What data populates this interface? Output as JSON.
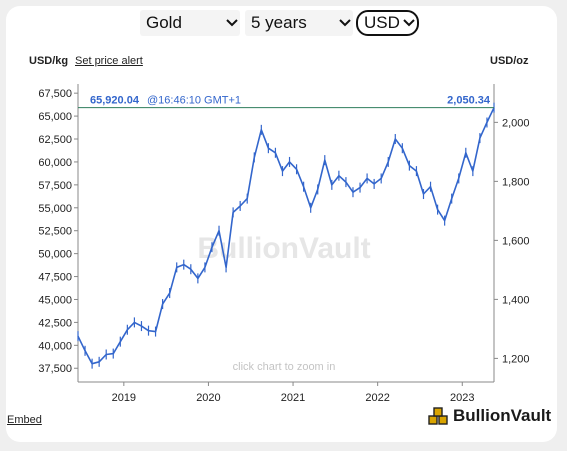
{
  "controls": {
    "metal": "Gold",
    "period": "5 years",
    "currency": "USD"
  },
  "labels": {
    "left_unit": "USD/kg",
    "set_alert": "Set price alert",
    "right_unit": "USD/oz",
    "current_left": "65,920.04",
    "current_time": "@16:46:10 GMT+1",
    "current_right": "2,050.34",
    "watermark": "BullionVault",
    "zoom_hint": "click chart to zoom in",
    "embed": "Embed",
    "brand": "BullionVault"
  },
  "colors": {
    "series": "#3366cc",
    "current_line": "#2e7d5b",
    "current_text": "#3366cc",
    "watermark": "#e6e6e6",
    "brand_icon": "#d9a400"
  },
  "chart_data": {
    "type": "line",
    "title": "",
    "x_axis": {
      "ticks": [
        "2019",
        "2020",
        "2021",
        "2022",
        "2023"
      ],
      "range": [
        "2018-06",
        "2023-05"
      ]
    },
    "y_axis_left": {
      "label": "USD/kg",
      "ticks": [
        "37,500",
        "40,000",
        "42,500",
        "45,000",
        "47,500",
        "50,000",
        "52,500",
        "55,000",
        "57,500",
        "60,000",
        "62,500",
        "65,000",
        "67,500"
      ],
      "range": [
        36000,
        68500
      ]
    },
    "y_axis_right": {
      "label": "USD/oz",
      "ticks": [
        "1,200",
        "1,400",
        "1,600",
        "1,800",
        "2,000"
      ],
      "range": [
        1120,
        2130
      ]
    },
    "current_value_usd_kg": 65920.04,
    "current_value_usd_oz": 2050.34,
    "series": [
      {
        "unit": "USD/kg",
        "points": [
          [
            "2018-06",
            41000
          ],
          [
            "2018-07",
            39400
          ],
          [
            "2018-08",
            38000
          ],
          [
            "2018-09",
            38200
          ],
          [
            "2018-10",
            39000
          ],
          [
            "2018-11",
            39100
          ],
          [
            "2018-12",
            40400
          ],
          [
            "2019-01",
            41700
          ],
          [
            "2019-02",
            42500
          ],
          [
            "2019-03",
            42100
          ],
          [
            "2019-04",
            41600
          ],
          [
            "2019-05",
            41500
          ],
          [
            "2019-06",
            44500
          ],
          [
            "2019-07",
            45700
          ],
          [
            "2019-08",
            48500
          ],
          [
            "2019-09",
            48800
          ],
          [
            "2019-10",
            48300
          ],
          [
            "2019-11",
            47300
          ],
          [
            "2019-12",
            48500
          ],
          [
            "2020-01",
            50700
          ],
          [
            "2020-02",
            52500
          ],
          [
            "2020-03",
            48500
          ],
          [
            "2020-04",
            54500
          ],
          [
            "2020-05",
            55200
          ],
          [
            "2020-06",
            56000
          ],
          [
            "2020-07",
            60500
          ],
          [
            "2020-08",
            63500
          ],
          [
            "2020-09",
            61500
          ],
          [
            "2020-10",
            61000
          ],
          [
            "2020-11",
            59000
          ],
          [
            "2020-12",
            60000
          ],
          [
            "2021-01",
            59200
          ],
          [
            "2021-02",
            57300
          ],
          [
            "2021-03",
            55000
          ],
          [
            "2021-04",
            57000
          ],
          [
            "2021-05",
            60200
          ],
          [
            "2021-06",
            57500
          ],
          [
            "2021-07",
            58500
          ],
          [
            "2021-08",
            57800
          ],
          [
            "2021-09",
            56700
          ],
          [
            "2021-10",
            57200
          ],
          [
            "2021-11",
            58200
          ],
          [
            "2021-12",
            57600
          ],
          [
            "2022-01",
            58200
          ],
          [
            "2022-02",
            60000
          ],
          [
            "2022-03",
            62500
          ],
          [
            "2022-04",
            61500
          ],
          [
            "2022-05",
            59600
          ],
          [
            "2022-06",
            59000
          ],
          [
            "2022-07",
            56500
          ],
          [
            "2022-08",
            57300
          ],
          [
            "2022-09",
            54800
          ],
          [
            "2022-10",
            53600
          ],
          [
            "2022-11",
            56000
          ],
          [
            "2022-12",
            58200
          ],
          [
            "2023-01",
            61000
          ],
          [
            "2023-02",
            59000
          ],
          [
            "2023-03",
            62600
          ],
          [
            "2023-04",
            64300
          ],
          [
            "2023-05",
            65920
          ]
        ]
      }
    ]
  }
}
